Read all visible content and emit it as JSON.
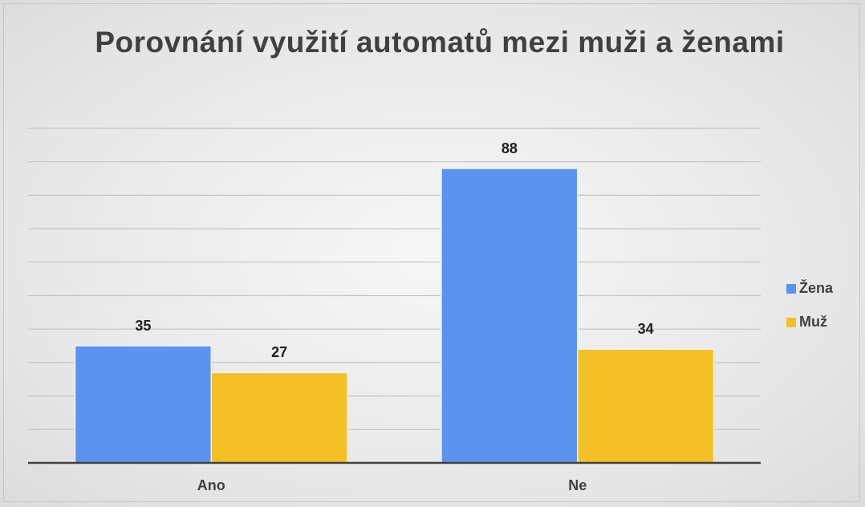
{
  "chart_data": {
    "type": "bar",
    "title": "Porovnání využití automatů mezi muži a ženami",
    "categories": [
      "Ano",
      "Ne"
    ],
    "series": [
      {
        "name": "Žena",
        "color": "#5b93f0",
        "values": [
          35,
          88
        ]
      },
      {
        "name": "Muž",
        "color": "#f5c026",
        "values": [
          27,
          34
        ]
      }
    ],
    "ylim": [
      0,
      100
    ],
    "yticks": [
      0,
      10,
      20,
      30,
      40,
      50,
      60,
      70,
      80,
      90,
      100
    ],
    "grid": true,
    "legend": "right"
  }
}
